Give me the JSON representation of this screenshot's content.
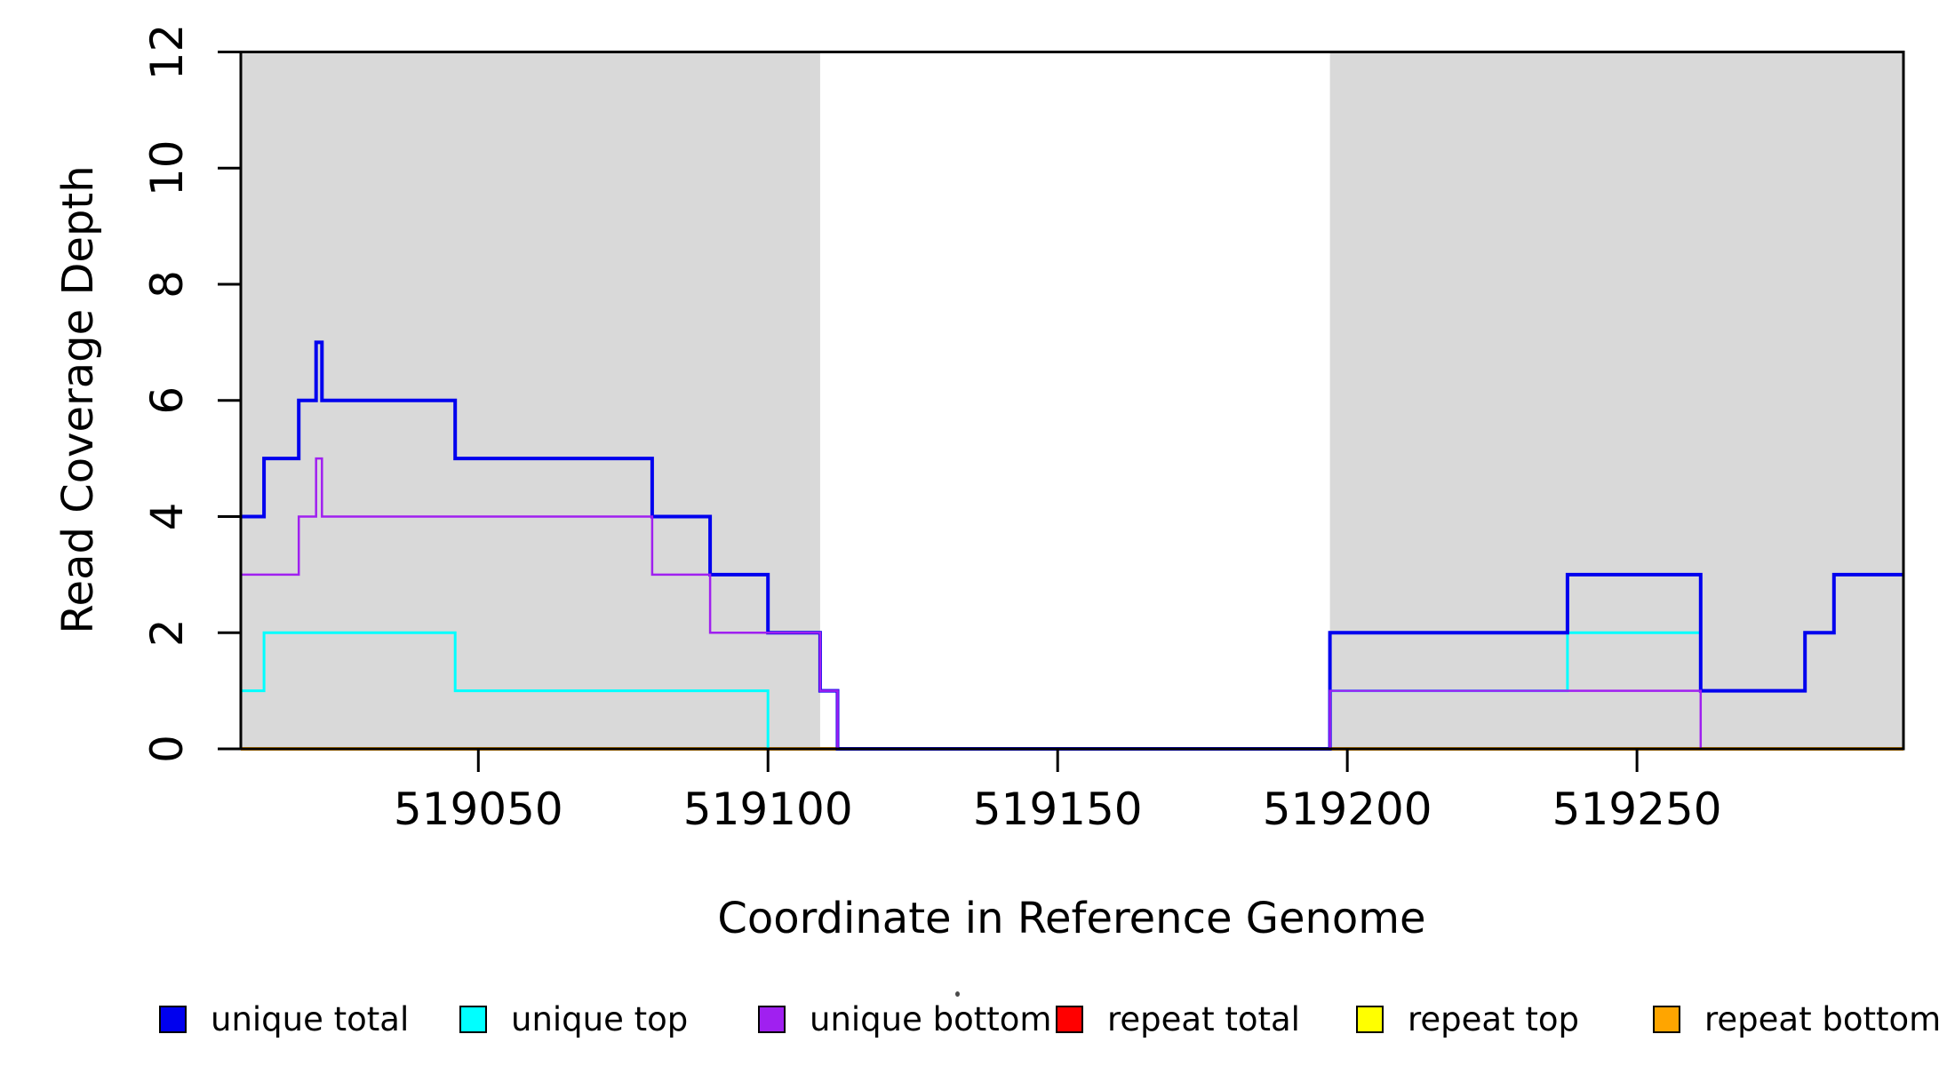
{
  "chart_data": {
    "type": "line",
    "subtype": "step-after-coverage-plot",
    "title": "",
    "xlabel": "Coordinate in Reference Genome",
    "ylabel": "Read Coverage Depth",
    "xlim": [
      519009,
      519296
    ],
    "ylim": [
      0,
      12
    ],
    "x_end": 519296,
    "xticks": [
      {
        "value": 519050,
        "label": "519050"
      },
      {
        "value": 519100,
        "label": "519100"
      },
      {
        "value": 519150,
        "label": "519150"
      },
      {
        "value": 519200,
        "label": "519200"
      },
      {
        "value": 519250,
        "label": "519250"
      }
    ],
    "yticks": [
      {
        "value": 0,
        "label": "0"
      },
      {
        "value": 2,
        "label": "2"
      },
      {
        "value": 4,
        "label": "4"
      },
      {
        "value": 6,
        "label": "6"
      },
      {
        "value": 8,
        "label": "8"
      },
      {
        "value": 10,
        "label": "10"
      },
      {
        "value": 12,
        "label": "12"
      }
    ],
    "grid": false,
    "background_color": "#ffffff",
    "shaded_region_color": "#d9d9d9",
    "shaded_regions": [
      {
        "start": 519009,
        "end": 519109
      },
      {
        "start": 519197,
        "end": 519296
      }
    ],
    "series": [
      {
        "name": "repeat total",
        "color": "#FF0000",
        "width": 3,
        "x": [
          519009
        ],
        "values": [
          0
        ]
      },
      {
        "name": "repeat top",
        "color": "#FFFF00",
        "width": 3,
        "x": [
          519009
        ],
        "values": [
          0
        ]
      },
      {
        "name": "repeat bottom",
        "color": "#FFA500",
        "width": 4,
        "x": [
          519009
        ],
        "values": [
          0
        ]
      },
      {
        "name": "unique top",
        "color": "#00FFFF",
        "width": 3,
        "x": [
          519009,
          519013,
          519046,
          519100,
          519197,
          519238,
          519261,
          519279,
          519284
        ],
        "values": [
          1,
          2,
          1,
          0,
          1,
          2,
          1,
          2,
          3
        ]
      },
      {
        "name": "unique total",
        "color": "#0000EE",
        "width": 4,
        "x": [
          519009,
          519013,
          519019,
          519022,
          519023,
          519046,
          519080,
          519090,
          519100,
          519109,
          519112,
          519197,
          519238,
          519261,
          519279,
          519284
        ],
        "values": [
          4,
          5,
          6,
          7,
          6,
          5,
          4,
          3,
          2,
          1,
          0,
          2,
          3,
          1,
          2,
          3
        ]
      },
      {
        "name": "unique bottom",
        "color": "#A020F0",
        "width": 2.5,
        "x": [
          519009,
          519019,
          519022,
          519023,
          519080,
          519090,
          519109,
          519112,
          519197,
          519261
        ],
        "values": [
          3,
          4,
          5,
          4,
          3,
          2,
          1,
          0,
          1,
          0
        ]
      }
    ],
    "legend_position": "bottom"
  },
  "legend": {
    "items": [
      {
        "label": "unique total",
        "color": "#0000EE"
      },
      {
        "label": "unique top",
        "color": "#00FFFF"
      },
      {
        "label": "unique bottom",
        "color": "#A020F0"
      },
      {
        "label": "repeat total",
        "color": "#FF0000"
      },
      {
        "label": "repeat top",
        "color": "#FFFF00"
      },
      {
        "label": "repeat bottom",
        "color": "#FFA500"
      }
    ]
  }
}
